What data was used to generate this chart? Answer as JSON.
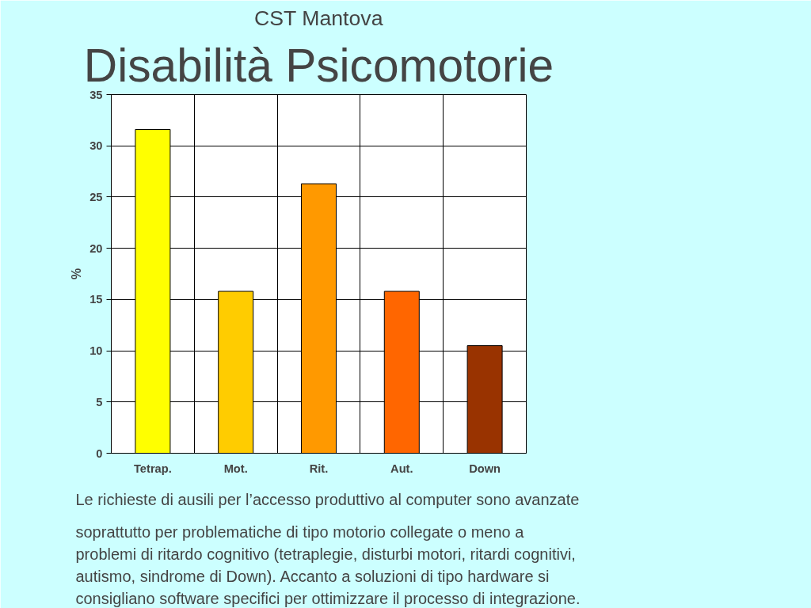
{
  "chart_data": {
    "type": "bar",
    "title": "CST Mantova",
    "subtitle": "Disabilità Psicomotorie",
    "categories": [
      "Tetrap.",
      "Mot.",
      "Rit.",
      "Aut.",
      "Down"
    ],
    "values": [
      31.6,
      15.8,
      26.3,
      15.8,
      10.5
    ],
    "colors": [
      "#ffff00",
      "#ffcc00",
      "#ff9900",
      "#ff6600",
      "#993300"
    ],
    "ylabel": "%",
    "ylim": [
      0,
      35
    ],
    "yticks": [
      0,
      5,
      10,
      15,
      20,
      25,
      30,
      35
    ],
    "grid": true,
    "annotations": [
      "Le richieste di ausili per l’accesso produttivo al computer sono avanzate\nsoprattutto per problematiche di tipo motorio collegate o meno a\nproblemi di ritardo cognitivo (tetraplegie, disturbi motori, ritardi cognitivi,\nautismo, sindrome di Down). Accanto a soluzioni di tipo hardware si\nconsigliano software specifici per ottimizzare il processo di integrazione."
    ]
  }
}
